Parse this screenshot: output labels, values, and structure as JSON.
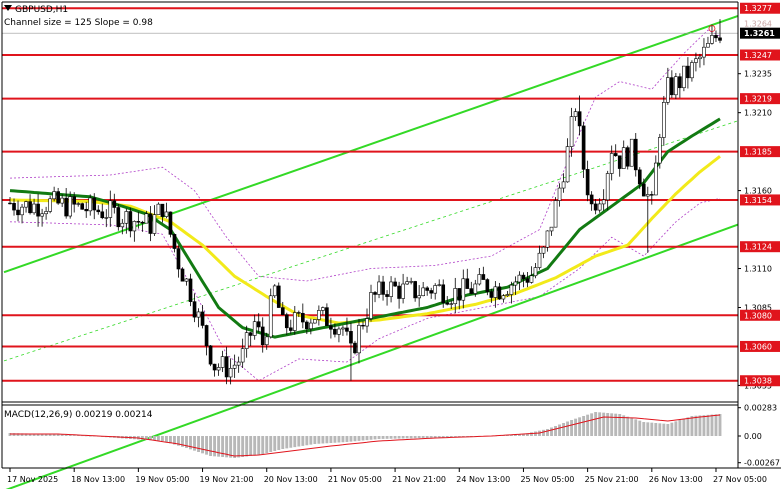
{
  "header": {
    "symbol": "GBPUSD,H1",
    "info": "Channel size = 125  Slope = 0.98"
  },
  "colors": {
    "level": "#e0141c",
    "channel": "#33d926",
    "ma_fast": "#127a12",
    "ma_slow": "#f2ea1a",
    "envelope": "#b040c8",
    "candle": "#000000",
    "macd_hist": "#b8b8b8",
    "macd_signal": "#e0141c"
  },
  "chart_data": [
    {
      "type": "candlestick",
      "title": "GBPUSD,H1",
      "subtitle": "Channel size = 125  Slope = 0.98",
      "ylim": [
        1.3025,
        1.3281
      ],
      "price_ticks": [
        "1.3235",
        "1.3210",
        "1.3160",
        "1.3110",
        "1.3085",
        "1.3035"
      ],
      "levels": [
        {
          "label": "1.3277",
          "value": 1.3277
        },
        {
          "label": "1.3247",
          "value": 1.3247
        },
        {
          "label": "1.3219",
          "value": 1.3219
        },
        {
          "label": "1.3185",
          "value": 1.3185
        },
        {
          "label": "1.3154",
          "value": 1.3154
        },
        {
          "label": "1.3124",
          "value": 1.3124
        },
        {
          "label": "1.3080",
          "value": 1.308
        },
        {
          "label": "1.3060",
          "value": 1.306
        },
        {
          "label": "1.3038",
          "value": 1.3038
        }
      ],
      "current_price": {
        "label": "1.3261",
        "value": 1.3261
      },
      "marker_price": {
        "label": "1.3264",
        "value": 1.3264
      },
      "x_labels": [
        "17 Nov 2025",
        "18 Nov 13:00",
        "19 Nov 05:00",
        "19 Nov 21:00",
        "20 Nov 13:00",
        "21 Nov 05:00",
        "21 Nov 21:00",
        "24 Nov 13:00",
        "25 Nov 05:00",
        "25 Nov 21:00",
        "26 Nov 13:00",
        "27 Nov 05:00"
      ],
      "x_label_bars": [
        0,
        16,
        32,
        48,
        64,
        80,
        96,
        112,
        128,
        144,
        160,
        176
      ],
      "bars_count": 178,
      "close_anchors": [
        [
          0,
          1.3152
        ],
        [
          5,
          1.315
        ],
        [
          10,
          1.3152
        ],
        [
          15,
          1.315
        ],
        [
          20,
          1.3148
        ],
        [
          25,
          1.3146
        ],
        [
          30,
          1.3142
        ],
        [
          35,
          1.3138
        ],
        [
          38,
          1.315
        ],
        [
          42,
          1.3114
        ],
        [
          45,
          1.3095
        ],
        [
          48,
          1.307
        ],
        [
          51,
          1.3048
        ],
        [
          55,
          1.3046
        ],
        [
          58,
          1.3054
        ],
        [
          61,
          1.3075
        ],
        [
          63,
          1.3062
        ],
        [
          66,
          1.3096
        ],
        [
          68,
          1.3073
        ],
        [
          72,
          1.3076
        ],
        [
          76,
          1.308
        ],
        [
          80,
          1.3077
        ],
        [
          83,
          1.3072
        ],
        [
          85,
          1.3055
        ],
        [
          87,
          1.307
        ],
        [
          90,
          1.309
        ],
        [
          94,
          1.3098
        ],
        [
          98,
          1.3096
        ],
        [
          102,
          1.3095
        ],
        [
          106,
          1.3098
        ],
        [
          110,
          1.3094
        ],
        [
          114,
          1.3096
        ],
        [
          118,
          1.31
        ],
        [
          122,
          1.3097
        ],
        [
          126,
          1.3102
        ],
        [
          130,
          1.3106
        ],
        [
          133,
          1.312
        ],
        [
          136,
          1.315
        ],
        [
          139,
          1.3185
        ],
        [
          141,
          1.3215
        ],
        [
          143,
          1.3175
        ],
        [
          145,
          1.315
        ],
        [
          148,
          1.3162
        ],
        [
          150,
          1.3188
        ],
        [
          152,
          1.318
        ],
        [
          155,
          1.3185
        ],
        [
          158,
          1.3163
        ],
        [
          160,
          1.315
        ],
        [
          162,
          1.32
        ],
        [
          164,
          1.3225
        ],
        [
          167,
          1.323
        ],
        [
          170,
          1.3238
        ],
        [
          173,
          1.3248
        ],
        [
          175,
          1.3255
        ],
        [
          177,
          1.3262
        ]
      ],
      "wick_spikes": [
        [
          85,
          1.3038
        ],
        [
          159,
          1.312
        ],
        [
          142,
          1.3221
        ],
        [
          177,
          1.327
        ]
      ],
      "channel_upper": [
        [
          0,
          1.3109
        ],
        [
          177,
          1.3268
        ]
      ],
      "channel_lower": [
        [
          58,
          1.3023
        ],
        [
          177,
          1.3134
        ]
      ],
      "channel_mid": [
        [
          0,
          1.3052
        ],
        [
          177,
          1.3201
        ]
      ],
      "ma_fast": [
        [
          0,
          1.316
        ],
        [
          10,
          1.3158
        ],
        [
          20,
          1.3156
        ],
        [
          28,
          1.315
        ],
        [
          34,
          1.3145
        ],
        [
          40,
          1.3135
        ],
        [
          46,
          1.311
        ],
        [
          52,
          1.3085
        ],
        [
          58,
          1.3072
        ],
        [
          66,
          1.3066
        ],
        [
          74,
          1.307
        ],
        [
          84,
          1.3075
        ],
        [
          94,
          1.308
        ],
        [
          104,
          1.3085
        ],
        [
          114,
          1.3093
        ],
        [
          124,
          1.3098
        ],
        [
          134,
          1.311
        ],
        [
          142,
          1.3135
        ],
        [
          150,
          1.315
        ],
        [
          158,
          1.3165
        ],
        [
          164,
          1.3185
        ],
        [
          170,
          1.3195
        ],
        [
          177,
          1.3206
        ]
      ],
      "ma_slow": [
        [
          0,
          1.3154
        ],
        [
          20,
          1.3153
        ],
        [
          30,
          1.315
        ],
        [
          40,
          1.314
        ],
        [
          48,
          1.3125
        ],
        [
          56,
          1.3105
        ],
        [
          64,
          1.3092
        ],
        [
          72,
          1.308
        ],
        [
          82,
          1.3075
        ],
        [
          92,
          1.3077
        ],
        [
          104,
          1.3081
        ],
        [
          116,
          1.3087
        ],
        [
          126,
          1.3094
        ],
        [
          136,
          1.3104
        ],
        [
          146,
          1.3118
        ],
        [
          154,
          1.3125
        ],
        [
          160,
          1.3142
        ],
        [
          166,
          1.3158
        ],
        [
          172,
          1.3172
        ],
        [
          177,
          1.3182
        ]
      ],
      "env_upper": [
        [
          0,
          1.3168
        ],
        [
          25,
          1.317
        ],
        [
          38,
          1.3175
        ],
        [
          46,
          1.316
        ],
        [
          54,
          1.313
        ],
        [
          62,
          1.3105
        ],
        [
          74,
          1.3102
        ],
        [
          90,
          1.311
        ],
        [
          106,
          1.3112
        ],
        [
          120,
          1.3118
        ],
        [
          132,
          1.3135
        ],
        [
          140,
          1.3185
        ],
        [
          146,
          1.322
        ],
        [
          152,
          1.323
        ],
        [
          160,
          1.3225
        ],
        [
          168,
          1.3248
        ],
        [
          174,
          1.3263
        ],
        [
          177,
          1.3259
        ]
      ],
      "env_lower": [
        [
          0,
          1.314
        ],
        [
          25,
          1.3138
        ],
        [
          38,
          1.3132
        ],
        [
          46,
          1.3095
        ],
        [
          54,
          1.3055
        ],
        [
          62,
          1.3038
        ],
        [
          72,
          1.3052
        ],
        [
          84,
          1.305
        ],
        [
          92,
          1.3065
        ],
        [
          104,
          1.3078
        ],
        [
          118,
          1.3085
        ],
        [
          132,
          1.3092
        ],
        [
          142,
          1.311
        ],
        [
          150,
          1.313
        ],
        [
          158,
          1.3118
        ],
        [
          166,
          1.314
        ],
        [
          172,
          1.3152
        ],
        [
          177,
          1.3155
        ]
      ]
    },
    {
      "type": "macd",
      "title": "MACD(12,26,9) 0.00219 0.00214",
      "ylim": [
        -0.0032,
        0.0031
      ],
      "tick_labels": [
        "0.00283",
        "0.00",
        "-0.00267"
      ],
      "tick_values": [
        0.00283,
        0.0,
        -0.00267
      ],
      "hist_anchors": [
        [
          0,
          0.0003
        ],
        [
          10,
          0.0002
        ],
        [
          20,
          0.0
        ],
        [
          30,
          -0.0003
        ],
        [
          38,
          -0.0005
        ],
        [
          44,
          -0.0012
        ],
        [
          50,
          -0.002
        ],
        [
          56,
          -0.0022
        ],
        [
          62,
          -0.0019
        ],
        [
          68,
          -0.0013
        ],
        [
          76,
          -0.0008
        ],
        [
          84,
          -0.0006
        ],
        [
          92,
          -0.0003
        ],
        [
          104,
          -0.0002
        ],
        [
          116,
          -0.0001
        ],
        [
          128,
          0.0002
        ],
        [
          134,
          0.0007
        ],
        [
          140,
          0.0016
        ],
        [
          146,
          0.0024
        ],
        [
          152,
          0.0022
        ],
        [
          158,
          0.0014
        ],
        [
          164,
          0.0012
        ],
        [
          170,
          0.002
        ],
        [
          177,
          0.0022
        ]
      ],
      "signal_anchors": [
        [
          0,
          0.0002
        ],
        [
          12,
          0.0002
        ],
        [
          22,
          0.0
        ],
        [
          32,
          -0.0002
        ],
        [
          42,
          -0.0008
        ],
        [
          50,
          -0.0015
        ],
        [
          56,
          -0.002
        ],
        [
          62,
          -0.0019
        ],
        [
          70,
          -0.0015
        ],
        [
          80,
          -0.001
        ],
        [
          92,
          -0.0005
        ],
        [
          106,
          -0.0002
        ],
        [
          120,
          -0.0
        ],
        [
          132,
          0.0003
        ],
        [
          140,
          0.0011
        ],
        [
          148,
          0.0019
        ],
        [
          156,
          0.0018
        ],
        [
          164,
          0.0015
        ],
        [
          172,
          0.0019
        ],
        [
          177,
          0.0021
        ]
      ]
    }
  ]
}
